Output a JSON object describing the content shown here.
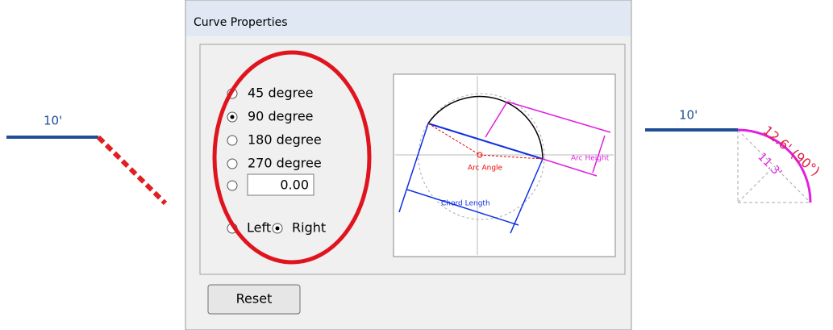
{
  "left_sketch": {
    "label": "10'"
  },
  "dialog": {
    "title": "Curve Properties",
    "angle_options": [
      "45 degree",
      "90 degree",
      "180 degree",
      "270 degree"
    ],
    "selected_angle": 1,
    "custom_angle": "0.00",
    "direction_options": [
      "Left",
      "Right"
    ],
    "selected_direction": 1,
    "diagram": {
      "arc_angle": "Arc Angle",
      "arc_height": "Arc Height",
      "chord_length": "Chord Length"
    },
    "reset": "Reset"
  },
  "right_sketch": {
    "label": "10'",
    "arc_label": "12.6' (90°)",
    "chord_label": "11.3'"
  }
}
